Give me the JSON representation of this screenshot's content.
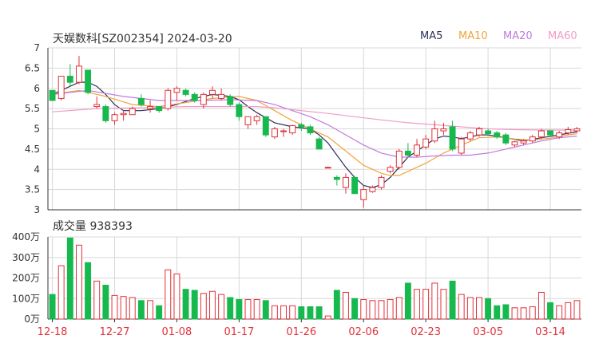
{
  "header": {
    "title": "天娱数科[SZ002354] 2024-03-20",
    "legend": [
      {
        "label": "MA5",
        "color": "#2e2e5c"
      },
      {
        "label": "MA10",
        "color": "#f0a53a"
      },
      {
        "label": "MA20",
        "color": "#c07ade"
      },
      {
        "label": "MA60",
        "color": "#f09cc8"
      }
    ]
  },
  "volume_title": "成交量 938393",
  "colors": {
    "up": "#e0323b",
    "down": "#16b94e",
    "axis": "#333333",
    "grid": "#d8d8d8"
  },
  "chart_data": [
    {
      "type": "candlestick",
      "title": "天娱数科[SZ002354] 2024-03-20",
      "ylim": [
        3,
        7
      ],
      "yticks": [
        "7",
        "6.5",
        "6",
        "5.5",
        "5",
        "4.5",
        "4",
        "3.5",
        "3"
      ],
      "xticks": [
        {
          "label": "12-18",
          "index": 0
        },
        {
          "label": "12-27",
          "index": 7
        },
        {
          "label": "01-08",
          "index": 14
        },
        {
          "label": "01-17",
          "index": 21
        },
        {
          "label": "01-26",
          "index": 28
        },
        {
          "label": "02-06",
          "index": 35
        },
        {
          "label": "02-23",
          "index": 42
        },
        {
          "label": "03-05",
          "index": 49
        },
        {
          "label": "03-14",
          "index": 56
        }
      ],
      "ohlc": [
        [
          5.95,
          5.95,
          5.7,
          5.7
        ],
        [
          5.75,
          6.3,
          5.7,
          6.3
        ],
        [
          6.3,
          6.6,
          6.05,
          6.15
        ],
        [
          6.15,
          6.8,
          6.1,
          6.55
        ],
        [
          6.45,
          6.45,
          5.85,
          5.9
        ],
        [
          5.55,
          5.8,
          5.5,
          5.6
        ],
        [
          5.55,
          5.6,
          5.15,
          5.2
        ],
        [
          5.2,
          5.4,
          5.1,
          5.35
        ],
        [
          5.35,
          5.45,
          5.2,
          5.38
        ],
        [
          5.35,
          5.55,
          5.35,
          5.5
        ],
        [
          5.75,
          5.85,
          5.55,
          5.6
        ],
        [
          5.5,
          5.7,
          5.4,
          5.55
        ],
        [
          5.55,
          5.55,
          5.4,
          5.45
        ],
        [
          5.5,
          6.0,
          5.45,
          5.95
        ],
        [
          5.9,
          6.05,
          5.7,
          6.0
        ],
        [
          5.95,
          6.0,
          5.8,
          5.85
        ],
        [
          5.85,
          5.9,
          5.65,
          5.7
        ],
        [
          5.6,
          5.9,
          5.5,
          5.85
        ],
        [
          5.85,
          6.05,
          5.75,
          5.95
        ],
        [
          5.75,
          6.0,
          5.7,
          5.85
        ],
        [
          5.8,
          5.85,
          5.55,
          5.6
        ],
        [
          5.6,
          5.65,
          5.2,
          5.3
        ],
        [
          5.1,
          5.3,
          5.0,
          5.3
        ],
        [
          5.2,
          5.35,
          5.1,
          5.3
        ],
        [
          5.3,
          5.3,
          4.8,
          4.85
        ],
        [
          4.8,
          5.05,
          4.75,
          5.0
        ],
        [
          4.95,
          5.0,
          4.8,
          4.95
        ],
        [
          4.9,
          5.1,
          4.85,
          5.08
        ],
        [
          5.1,
          5.15,
          4.95,
          5.05
        ],
        [
          5.05,
          5.1,
          4.85,
          4.9
        ],
        [
          4.75,
          4.8,
          4.5,
          4.5
        ],
        [
          4.05,
          4.07,
          4.03,
          4.05
        ],
        [
          3.8,
          3.85,
          3.6,
          3.75
        ],
        [
          3.55,
          3.9,
          3.4,
          3.8
        ],
        [
          3.8,
          3.8,
          3.4,
          3.4
        ],
        [
          3.25,
          3.6,
          3.05,
          3.5
        ],
        [
          3.45,
          3.6,
          3.42,
          3.55
        ],
        [
          3.55,
          3.85,
          3.5,
          3.8
        ],
        [
          3.95,
          4.1,
          3.9,
          4.05
        ],
        [
          4.05,
          4.5,
          4.0,
          4.45
        ],
        [
          4.45,
          4.65,
          4.3,
          4.35
        ],
        [
          4.35,
          4.75,
          4.3,
          4.6
        ],
        [
          4.55,
          4.85,
          4.5,
          4.75
        ],
        [
          4.7,
          5.2,
          4.65,
          5.0
        ],
        [
          4.95,
          5.15,
          4.85,
          5.0
        ],
        [
          5.05,
          5.2,
          4.45,
          4.5
        ],
        [
          4.4,
          4.8,
          4.35,
          4.75
        ],
        [
          4.75,
          4.95,
          4.7,
          4.9
        ],
        [
          4.85,
          5.05,
          4.8,
          5.0
        ],
        [
          4.95,
          5.0,
          4.85,
          4.88
        ],
        [
          4.9,
          4.95,
          4.75,
          4.8
        ],
        [
          4.85,
          4.9,
          4.6,
          4.65
        ],
        [
          4.6,
          4.7,
          4.55,
          4.68
        ],
        [
          4.65,
          4.75,
          4.6,
          4.7
        ],
        [
          4.7,
          4.85,
          4.65,
          4.8
        ],
        [
          4.8,
          5.0,
          4.75,
          4.95
        ],
        [
          4.95,
          4.95,
          4.8,
          4.85
        ],
        [
          4.8,
          4.95,
          4.75,
          4.9
        ],
        [
          4.9,
          5.05,
          4.85,
          4.98
        ],
        [
          4.95,
          5.05,
          4.9,
          5.0
        ]
      ],
      "ma": {
        "MA5": [
          [
            0,
            5.85
          ],
          [
            2,
            6.05
          ],
          [
            3,
            6.15
          ],
          [
            4,
            6.15
          ],
          [
            5,
            6.05
          ],
          [
            6,
            5.85
          ],
          [
            7,
            5.6
          ],
          [
            8,
            5.45
          ],
          [
            10,
            5.45
          ],
          [
            12,
            5.5
          ],
          [
            14,
            5.6
          ],
          [
            16,
            5.75
          ],
          [
            18,
            5.85
          ],
          [
            20,
            5.8
          ],
          [
            21,
            5.72
          ],
          [
            22,
            5.55
          ],
          [
            23,
            5.4
          ],
          [
            25,
            5.15
          ],
          [
            27,
            5.05
          ],
          [
            29,
            5.0
          ],
          [
            30,
            4.85
          ],
          [
            31,
            4.65
          ],
          [
            32,
            4.35
          ],
          [
            33,
            4.05
          ],
          [
            34,
            3.8
          ],
          [
            35,
            3.6
          ],
          [
            36,
            3.55
          ],
          [
            37,
            3.62
          ],
          [
            38,
            3.8
          ],
          [
            39,
            4.05
          ],
          [
            40,
            4.3
          ],
          [
            41,
            4.45
          ],
          [
            42,
            4.6
          ],
          [
            43,
            4.75
          ],
          [
            44,
            4.82
          ],
          [
            45,
            4.8
          ],
          [
            46,
            4.76
          ],
          [
            47,
            4.8
          ],
          [
            48,
            4.85
          ],
          [
            49,
            4.85
          ],
          [
            51,
            4.78
          ],
          [
            53,
            4.7
          ],
          [
            55,
            4.78
          ],
          [
            57,
            4.85
          ],
          [
            59,
            4.93
          ]
        ],
        "MA10": [
          [
            0,
            5.85
          ],
          [
            3,
            5.95
          ],
          [
            6,
            5.8
          ],
          [
            9,
            5.6
          ],
          [
            12,
            5.55
          ],
          [
            15,
            5.65
          ],
          [
            18,
            5.75
          ],
          [
            21,
            5.8
          ],
          [
            23,
            5.7
          ],
          [
            25,
            5.45
          ],
          [
            27,
            5.2
          ],
          [
            29,
            5.0
          ],
          [
            31,
            4.8
          ],
          [
            33,
            4.45
          ],
          [
            35,
            4.1
          ],
          [
            37,
            3.9
          ],
          [
            38,
            3.85
          ],
          [
            39,
            3.85
          ],
          [
            40,
            3.95
          ],
          [
            42,
            4.15
          ],
          [
            44,
            4.4
          ],
          [
            46,
            4.6
          ],
          [
            48,
            4.78
          ],
          [
            50,
            4.8
          ],
          [
            52,
            4.75
          ],
          [
            54,
            4.72
          ],
          [
            56,
            4.77
          ],
          [
            58,
            4.85
          ],
          [
            59,
            4.88
          ]
        ],
        "MA20": [
          [
            0,
            5.85
          ],
          [
            4,
            5.95
          ],
          [
            8,
            5.8
          ],
          [
            12,
            5.7
          ],
          [
            16,
            5.7
          ],
          [
            20,
            5.72
          ],
          [
            23,
            5.7
          ],
          [
            25,
            5.6
          ],
          [
            27,
            5.45
          ],
          [
            29,
            5.3
          ],
          [
            31,
            5.1
          ],
          [
            33,
            4.85
          ],
          [
            35,
            4.6
          ],
          [
            37,
            4.4
          ],
          [
            39,
            4.3
          ],
          [
            41,
            4.3
          ],
          [
            43,
            4.33
          ],
          [
            45,
            4.35
          ],
          [
            47,
            4.35
          ],
          [
            49,
            4.4
          ],
          [
            51,
            4.5
          ],
          [
            53,
            4.6
          ],
          [
            55,
            4.7
          ],
          [
            57,
            4.78
          ],
          [
            59,
            4.82
          ]
        ],
        "MA60": [
          [
            0,
            5.42
          ],
          [
            5,
            5.5
          ],
          [
            10,
            5.52
          ],
          [
            15,
            5.55
          ],
          [
            20,
            5.55
          ],
          [
            23,
            5.55
          ],
          [
            25,
            5.52
          ],
          [
            28,
            5.45
          ],
          [
            31,
            5.38
          ],
          [
            34,
            5.3
          ],
          [
            37,
            5.22
          ],
          [
            40,
            5.15
          ],
          [
            43,
            5.1
          ],
          [
            46,
            5.05
          ],
          [
            49,
            5.0
          ],
          [
            52,
            4.98
          ],
          [
            55,
            4.97
          ],
          [
            59,
            4.97
          ]
        ]
      }
    },
    {
      "type": "bar",
      "title": "成交量 938393",
      "ylim": [
        0,
        400
      ],
      "yticks": [
        "400万",
        "300万",
        "200万",
        "100万",
        "0万"
      ],
      "values": [
        120,
        260,
        395,
        360,
        275,
        185,
        165,
        115,
        110,
        105,
        90,
        90,
        65,
        240,
        220,
        145,
        140,
        125,
        135,
        120,
        105,
        95,
        95,
        95,
        90,
        65,
        65,
        65,
        60,
        60,
        60,
        15,
        140,
        130,
        100,
        95,
        90,
        90,
        95,
        105,
        175,
        145,
        145,
        175,
        145,
        185,
        120,
        105,
        105,
        100,
        65,
        70,
        55,
        55,
        60,
        130,
        80,
        65,
        80,
        90
      ]
    }
  ]
}
